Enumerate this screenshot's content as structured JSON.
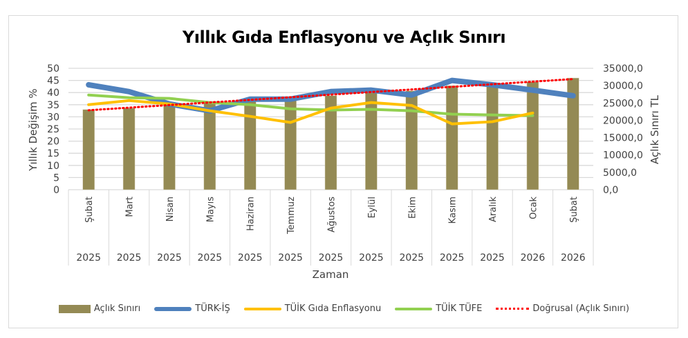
{
  "chart_data": {
    "type": "bar+line",
    "title": "Yıllık Gıda Enflasyonu ve Açlık Sınırı",
    "xlabel": "Zaman",
    "ylabel": "Yıllık Değişim %",
    "y2label": "Açlık Sınırı TL",
    "ylim": [
      0,
      50
    ],
    "y2lim": [
      0,
      35000
    ],
    "yticks": [
      "0",
      "5",
      "10",
      "15",
      "20",
      "25",
      "30",
      "35",
      "40",
      "45",
      "50"
    ],
    "y2ticks": [
      "0,0",
      "5000,0",
      "10000,0",
      "15000,0",
      "20000,0",
      "25000,0",
      "30000,0",
      "35000,0"
    ],
    "grid": true,
    "legend_position": "bottom",
    "categories": [
      {
        "month": "Şubat",
        "year": "2025"
      },
      {
        "month": "Mart",
        "year": "2025"
      },
      {
        "month": "Nisan",
        "year": "2025"
      },
      {
        "month": "Mayıs",
        "year": "2025"
      },
      {
        "month": "Haziran",
        "year": "2025"
      },
      {
        "month": "Temmuz",
        "year": "2025"
      },
      {
        "month": "Ağustos",
        "year": "2025"
      },
      {
        "month": "Eylül",
        "year": "2025"
      },
      {
        "month": "Ekim",
        "year": "2025"
      },
      {
        "month": "Kasım",
        "year": "2025"
      },
      {
        "month": "Aralık",
        "year": "2025"
      },
      {
        "month": "Ocak",
        "year": "2026"
      },
      {
        "month": "Şubat",
        "year": "2026"
      }
    ],
    "series": [
      {
        "name": "Açlık Sınırı",
        "type": "bar",
        "axis": "right",
        "color": "#948a54",
        "values": [
          23100,
          23500,
          24700,
          25100,
          25700,
          26100,
          27100,
          27900,
          28500,
          30000,
          29700,
          31100,
          32200
        ]
      },
      {
        "name": "TÜRK-İŞ",
        "type": "line",
        "axis": "left",
        "color": "#4f81bd",
        "width": 8,
        "values": [
          43.2,
          40.4,
          35.3,
          32.5,
          37.3,
          37.3,
          40.4,
          41.0,
          39.0,
          45.0,
          43.2,
          41.0,
          38.7
        ]
      },
      {
        "name": "TÜİK Gıda Enflasyonu",
        "type": "line",
        "axis": "left",
        "color": "#ffc000",
        "width": 4,
        "values": [
          35.0,
          36.7,
          35.3,
          32.5,
          30.2,
          27.7,
          33.6,
          35.9,
          34.7,
          27.1,
          28.0,
          31.6,
          null
        ]
      },
      {
        "name": "TÜİK TÜFE",
        "type": "line",
        "axis": "left",
        "color": "#92d050",
        "width": 4,
        "values": [
          39.0,
          37.9,
          37.6,
          35.9,
          35.0,
          33.3,
          32.8,
          33.1,
          32.5,
          31.1,
          30.8,
          30.5,
          null
        ]
      },
      {
        "name": "Doğrusal (Açlık Sınırı)",
        "type": "trendline",
        "axis": "right",
        "color": "#ff0000",
        "style": "dotted",
        "values": [
          22900,
          23650,
          24400,
          25150,
          25900,
          26650,
          27400,
          28150,
          28900,
          29650,
          30400,
          31150,
          31900
        ]
      }
    ]
  },
  "legend": {
    "items": [
      {
        "label": "Açlık Sınırı"
      },
      {
        "label": "TÜRK-İŞ"
      },
      {
        "label": "TÜİK Gıda Enflasyonu"
      },
      {
        "label": "TÜİK TÜFE"
      },
      {
        "label": "Doğrusal (Açlık Sınırı)"
      }
    ]
  }
}
